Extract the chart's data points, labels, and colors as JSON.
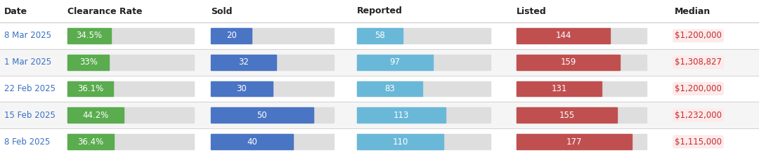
{
  "headers": [
    "Date",
    "Clearance Rate",
    "Sold",
    "Reported",
    "Listed",
    "Median"
  ],
  "rows": [
    {
      "date": "8 Mar 2025",
      "clearance_rate": 34.5,
      "clearance_label": "34.5%",
      "sold": 20,
      "reported": 58,
      "listed": 144,
      "median": "$1,200,000"
    },
    {
      "date": "1 Mar 2025",
      "clearance_rate": 33.0,
      "clearance_label": "33%",
      "sold": 32,
      "reported": 97,
      "listed": 159,
      "median": "$1,308,827"
    },
    {
      "date": "22 Feb 2025",
      "clearance_rate": 36.1,
      "clearance_label": "36.1%",
      "sold": 30,
      "reported": 83,
      "listed": 131,
      "median": "$1,200,000"
    },
    {
      "date": "15 Feb 2025",
      "clearance_rate": 44.2,
      "clearance_label": "44.2%",
      "sold": 50,
      "reported": 113,
      "listed": 155,
      "median": "$1,232,000"
    },
    {
      "date": "8 Feb 2025",
      "clearance_rate": 36.4,
      "clearance_label": "36.4%",
      "sold": 40,
      "reported": 110,
      "listed": 177,
      "median": "$1,115,000"
    }
  ],
  "colors": {
    "date_text": "#3a6fc4",
    "header_text": "#222222",
    "clearance_bar": "#5aac4e",
    "bar_bg": "#dedede",
    "sold_bar": "#4a75c4",
    "reported_bar": "#6ab8d8",
    "listed_bar": "#c05050",
    "median_text": "#c03030",
    "median_bg": "#fdeaea",
    "row_bg_alt": "#f5f5f5",
    "row_bg": "#ffffff",
    "header_bg": "#ffffff",
    "divider": "#cccccc",
    "background": "#ffffff",
    "bar_text": "#ffffff"
  },
  "max_sold": 60,
  "max_reported": 170,
  "max_listed": 200,
  "header_fontsize": 9,
  "data_fontsize": 8.5
}
